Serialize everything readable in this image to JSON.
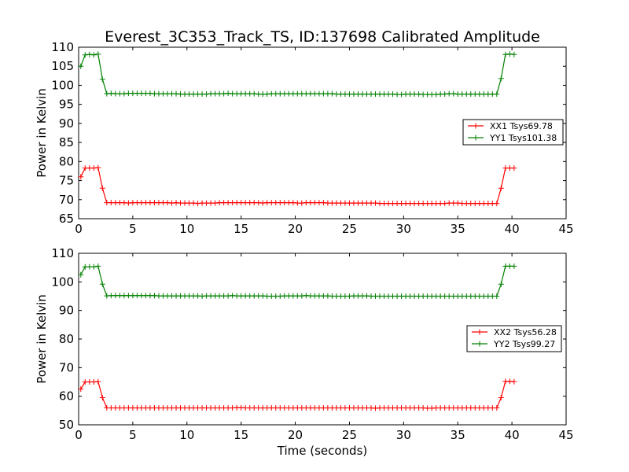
{
  "chart_data": [
    {
      "type": "line",
      "title": "Everest_3C353_Track_TS, ID:137698 Calibrated Amplitude",
      "xlabel": "",
      "ylabel": "Power in Kelvin",
      "xlim": [
        0,
        45
      ],
      "ylim": [
        65,
        110
      ],
      "xticks": [
        "0",
        "5",
        "10",
        "15",
        "20",
        "25",
        "30",
        "35",
        "40",
        "45"
      ],
      "yticks": [
        "65",
        "70",
        "75",
        "80",
        "85",
        "90",
        "95",
        "100",
        "105",
        "110"
      ],
      "legend": "right",
      "series": [
        {
          "name": "XX1 Tsys69.78",
          "color": "#ff0000",
          "x": [
            0.2,
            0.6,
            1.0,
            1.4,
            1.8,
            2.2,
            2.6,
            3.0,
            3.4,
            3.8,
            4.2,
            4.6,
            5.0,
            5.4,
            5.8,
            6.2,
            6.6,
            7.0,
            7.4,
            7.8,
            8.2,
            8.6,
            9.0,
            9.4,
            9.8,
            10.2,
            10.6,
            11.0,
            11.4,
            11.8,
            12.2,
            12.6,
            13.0,
            13.4,
            13.8,
            14.2,
            14.6,
            15.0,
            15.4,
            15.8,
            16.2,
            16.6,
            17.0,
            17.4,
            17.8,
            18.2,
            18.6,
            19.0,
            19.4,
            19.8,
            20.2,
            20.6,
            21.0,
            21.4,
            21.8,
            22.2,
            22.6,
            23.0,
            23.4,
            23.8,
            24.2,
            24.6,
            25.0,
            25.4,
            25.8,
            26.2,
            26.6,
            27.0,
            27.4,
            27.8,
            28.2,
            28.6,
            29.0,
            29.4,
            29.8,
            30.2,
            30.6,
            31.0,
            31.4,
            31.8,
            32.2,
            32.6,
            33.0,
            33.4,
            33.8,
            34.2,
            34.6,
            35.0,
            35.4,
            35.8,
            36.2,
            36.6,
            37.0,
            37.4,
            37.8,
            38.2,
            38.6,
            39.0,
            39.4,
            39.8,
            40.2
          ],
          "y": [
            76.0,
            78.3,
            78.3,
            78.3,
            78.4,
            73.0,
            69.2,
            69.2,
            69.2,
            69.2,
            69.2,
            69.1,
            69.2,
            69.2,
            69.2,
            69.2,
            69.2,
            69.2,
            69.2,
            69.2,
            69.2,
            69.1,
            69.2,
            69.1,
            69.1,
            69.1,
            69.1,
            69.0,
            69.1,
            69.1,
            69.1,
            69.1,
            69.2,
            69.2,
            69.2,
            69.2,
            69.2,
            69.2,
            69.2,
            69.2,
            69.2,
            69.2,
            69.1,
            69.2,
            69.2,
            69.2,
            69.2,
            69.2,
            69.2,
            69.2,
            69.1,
            69.1,
            69.2,
            69.2,
            69.2,
            69.2,
            69.2,
            69.1,
            69.1,
            69.1,
            69.1,
            69.1,
            69.1,
            69.1,
            69.1,
            69.1,
            69.1,
            69.1,
            69.1,
            69.0,
            69.0,
            69.0,
            69.0,
            69.0,
            69.0,
            69.0,
            69.0,
            69.0,
            69.0,
            69.0,
            69.0,
            69.0,
            69.0,
            69.0,
            69.0,
            69.1,
            69.1,
            69.1,
            69.0,
            69.0,
            69.0,
            69.0,
            69.0,
            69.0,
            69.0,
            69.0,
            69.0,
            73.0,
            78.3,
            78.3,
            78.3
          ]
        },
        {
          "name": "YY1 Tsys101.38",
          "color": "#008000",
          "x": [
            0.2,
            0.6,
            1.0,
            1.4,
            1.8,
            2.2,
            2.6,
            3.0,
            3.4,
            3.8,
            4.2,
            4.6,
            5.0,
            5.4,
            5.8,
            6.2,
            6.6,
            7.0,
            7.4,
            7.8,
            8.2,
            8.6,
            9.0,
            9.4,
            9.8,
            10.2,
            10.6,
            11.0,
            11.4,
            11.8,
            12.2,
            12.6,
            13.0,
            13.4,
            13.8,
            14.2,
            14.6,
            15.0,
            15.4,
            15.8,
            16.2,
            16.6,
            17.0,
            17.4,
            17.8,
            18.2,
            18.6,
            19.0,
            19.4,
            19.8,
            20.2,
            20.6,
            21.0,
            21.4,
            21.8,
            22.2,
            22.6,
            23.0,
            23.4,
            23.8,
            24.2,
            24.6,
            25.0,
            25.4,
            25.8,
            26.2,
            26.6,
            27.0,
            27.4,
            27.8,
            28.2,
            28.6,
            29.0,
            29.4,
            29.8,
            30.2,
            30.6,
            31.0,
            31.4,
            31.8,
            32.2,
            32.6,
            33.0,
            33.4,
            33.8,
            34.2,
            34.6,
            35.0,
            35.4,
            35.8,
            36.2,
            36.6,
            37.0,
            37.4,
            37.8,
            38.2,
            38.6,
            39.0,
            39.4,
            39.8,
            40.2
          ],
          "y": [
            105.0,
            108.0,
            108.1,
            108.0,
            108.2,
            101.6,
            97.8,
            97.9,
            97.8,
            97.8,
            97.8,
            97.9,
            97.9,
            97.9,
            97.9,
            97.9,
            97.9,
            97.8,
            97.8,
            97.8,
            97.8,
            97.8,
            97.8,
            97.7,
            97.7,
            97.7,
            97.7,
            97.7,
            97.7,
            97.7,
            97.8,
            97.8,
            97.8,
            97.8,
            97.9,
            97.8,
            97.8,
            97.8,
            97.8,
            97.8,
            97.8,
            97.7,
            97.7,
            97.7,
            97.8,
            97.8,
            97.8,
            97.8,
            97.8,
            97.8,
            97.8,
            97.8,
            97.8,
            97.8,
            97.8,
            97.8,
            97.8,
            97.8,
            97.8,
            97.7,
            97.7,
            97.7,
            97.7,
            97.7,
            97.7,
            97.7,
            97.7,
            97.7,
            97.7,
            97.7,
            97.7,
            97.7,
            97.7,
            97.6,
            97.6,
            97.7,
            97.7,
            97.7,
            97.7,
            97.6,
            97.6,
            97.6,
            97.6,
            97.7,
            97.7,
            97.8,
            97.8,
            97.7,
            97.7,
            97.7,
            97.7,
            97.7,
            97.7,
            97.7,
            97.7,
            97.7,
            97.7,
            101.8,
            108.1,
            108.2,
            108.1
          ]
        }
      ]
    },
    {
      "type": "line",
      "title": "",
      "xlabel": "Time (seconds)",
      "ylabel": "Power in Kelvin",
      "xlim": [
        0,
        45
      ],
      "ylim": [
        50,
        110
      ],
      "xticks": [
        "0",
        "5",
        "10",
        "15",
        "20",
        "25",
        "30",
        "35",
        "40",
        "45"
      ],
      "yticks": [
        "50",
        "60",
        "70",
        "80",
        "90",
        "100",
        "110"
      ],
      "legend": "right",
      "series": [
        {
          "name": "XX2 Tsys56.28",
          "color": "#ff0000",
          "x": [
            0.2,
            0.6,
            1.0,
            1.4,
            1.8,
            2.2,
            2.6,
            3.0,
            3.4,
            3.8,
            4.2,
            4.6,
            5.0,
            5.4,
            5.8,
            6.2,
            6.6,
            7.0,
            7.4,
            7.8,
            8.2,
            8.6,
            9.0,
            9.4,
            9.8,
            10.2,
            10.6,
            11.0,
            11.4,
            11.8,
            12.2,
            12.6,
            13.0,
            13.4,
            13.8,
            14.2,
            14.6,
            15.0,
            15.4,
            15.8,
            16.2,
            16.6,
            17.0,
            17.4,
            17.8,
            18.2,
            18.6,
            19.0,
            19.4,
            19.8,
            20.2,
            20.6,
            21.0,
            21.4,
            21.8,
            22.2,
            22.6,
            23.0,
            23.4,
            23.8,
            24.2,
            24.6,
            25.0,
            25.4,
            25.8,
            26.2,
            26.6,
            27.0,
            27.4,
            27.8,
            28.2,
            28.6,
            29.0,
            29.4,
            29.8,
            30.2,
            30.6,
            31.0,
            31.4,
            31.8,
            32.2,
            32.6,
            33.0,
            33.4,
            33.8,
            34.2,
            34.6,
            35.0,
            35.4,
            35.8,
            36.2,
            36.6,
            37.0,
            37.4,
            37.8,
            38.2,
            38.6,
            39.0,
            39.4,
            39.8,
            40.2
          ],
          "y": [
            62.5,
            65.0,
            65.0,
            65.0,
            65.1,
            59.5,
            55.9,
            55.9,
            55.9,
            55.9,
            55.9,
            55.9,
            55.9,
            55.9,
            55.9,
            55.9,
            55.9,
            55.9,
            55.9,
            55.9,
            55.9,
            55.9,
            55.9,
            55.9,
            55.9,
            55.9,
            55.9,
            55.9,
            55.9,
            55.9,
            55.9,
            55.9,
            55.9,
            55.9,
            55.9,
            55.9,
            56.0,
            56.0,
            55.9,
            55.9,
            55.9,
            55.9,
            55.9,
            55.9,
            55.9,
            55.9,
            55.9,
            55.9,
            55.9,
            55.9,
            55.9,
            55.9,
            55.9,
            55.9,
            55.9,
            55.9,
            55.9,
            55.9,
            55.9,
            55.9,
            55.9,
            55.9,
            55.9,
            55.9,
            55.9,
            55.9,
            55.9,
            55.9,
            55.8,
            55.9,
            55.9,
            55.9,
            55.9,
            55.9,
            55.9,
            55.9,
            55.9,
            55.9,
            55.9,
            55.9,
            55.8,
            55.8,
            55.9,
            55.9,
            55.9,
            55.9,
            55.9,
            55.9,
            55.9,
            55.9,
            55.9,
            55.9,
            55.9,
            55.9,
            55.9,
            55.9,
            55.9,
            59.5,
            65.2,
            65.2,
            65.1
          ]
        },
        {
          "name": "YY2 Tsys99.27",
          "color": "#008000",
          "x": [
            0.2,
            0.6,
            1.0,
            1.4,
            1.8,
            2.2,
            2.6,
            3.0,
            3.4,
            3.8,
            4.2,
            4.6,
            5.0,
            5.4,
            5.8,
            6.2,
            6.6,
            7.0,
            7.4,
            7.8,
            8.2,
            8.6,
            9.0,
            9.4,
            9.8,
            10.2,
            10.6,
            11.0,
            11.4,
            11.8,
            12.2,
            12.6,
            13.0,
            13.4,
            13.8,
            14.2,
            14.6,
            15.0,
            15.4,
            15.8,
            16.2,
            16.6,
            17.0,
            17.4,
            17.8,
            18.2,
            18.6,
            19.0,
            19.4,
            19.8,
            20.2,
            20.6,
            21.0,
            21.4,
            21.8,
            22.2,
            22.6,
            23.0,
            23.4,
            23.8,
            24.2,
            24.6,
            25.0,
            25.4,
            25.8,
            26.2,
            26.6,
            27.0,
            27.4,
            27.8,
            28.2,
            28.6,
            29.0,
            29.4,
            29.8,
            30.2,
            30.6,
            31.0,
            31.4,
            31.8,
            32.2,
            32.6,
            33.0,
            33.4,
            33.8,
            34.2,
            34.6,
            35.0,
            35.4,
            35.8,
            36.2,
            36.6,
            37.0,
            37.4,
            37.8,
            38.2,
            38.6,
            39.0,
            39.4,
            39.8,
            40.2
          ],
          "y": [
            102.5,
            105.3,
            105.3,
            105.3,
            105.5,
            99.2,
            95.1,
            95.2,
            95.2,
            95.2,
            95.2,
            95.2,
            95.2,
            95.2,
            95.2,
            95.2,
            95.2,
            95.2,
            95.1,
            95.1,
            95.1,
            95.1,
            95.1,
            95.1,
            95.1,
            95.1,
            95.1,
            95.1,
            95.0,
            95.1,
            95.1,
            95.1,
            95.1,
            95.1,
            95.1,
            95.2,
            95.1,
            95.1,
            95.1,
            95.1,
            95.1,
            95.1,
            95.1,
            95.0,
            95.0,
            95.0,
            95.0,
            95.1,
            95.1,
            95.1,
            95.1,
            95.1,
            95.2,
            95.1,
            95.1,
            95.1,
            95.1,
            95.1,
            95.0,
            95.0,
            95.0,
            95.0,
            95.0,
            95.1,
            95.1,
            95.1,
            95.1,
            95.0,
            95.0,
            95.0,
            95.0,
            95.0,
            95.0,
            95.0,
            95.0,
            95.0,
            95.0,
            95.0,
            95.0,
            95.0,
            95.0,
            95.0,
            95.0,
            95.0,
            95.0,
            95.0,
            95.0,
            95.0,
            95.0,
            95.0,
            95.0,
            95.0,
            95.0,
            95.0,
            95.0,
            95.0,
            95.0,
            99.2,
            105.5,
            105.5,
            105.5
          ]
        }
      ]
    }
  ]
}
